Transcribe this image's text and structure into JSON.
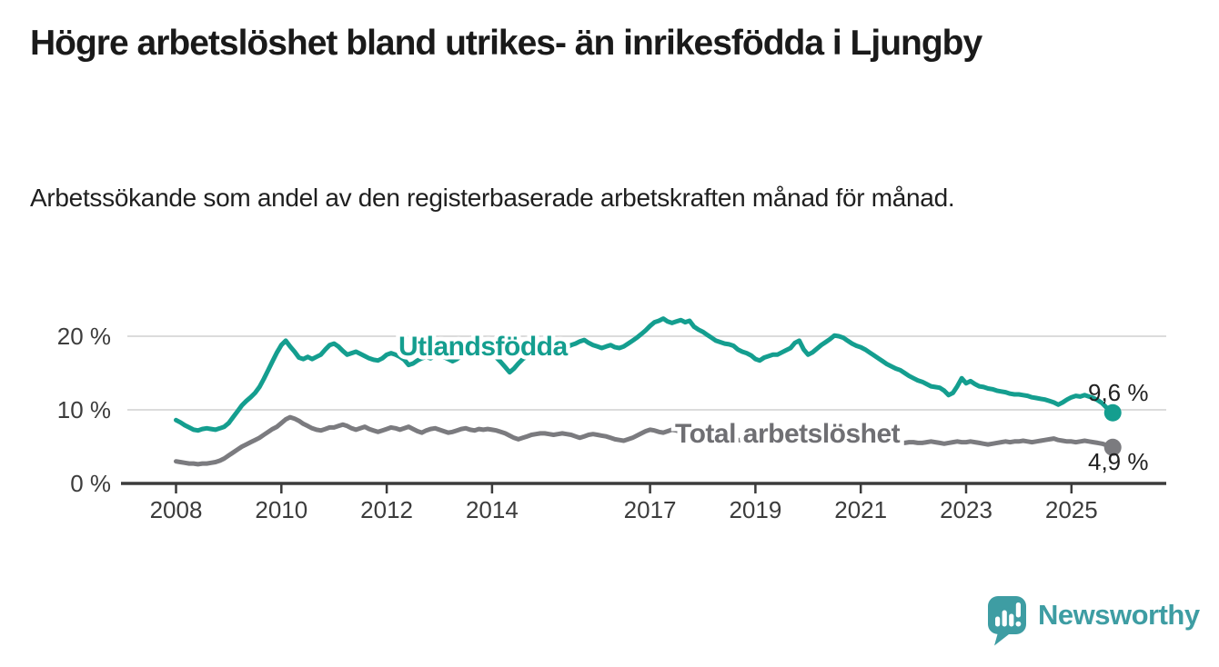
{
  "header": {
    "title": "Högre arbetslöshet bland utrikes- än inrikesfödda i Ljungby",
    "subtitle": "Arbetssökande som andel av den registerbaserade arbetskraften månad för månad."
  },
  "chart_data": {
    "type": "line",
    "unit": "percent of registered labour force",
    "frequency": "monthly",
    "start": "2008-01",
    "end": "2025-10",
    "grid": "horizontal",
    "ylim": [
      0,
      23.5
    ],
    "x_tick_years": [
      "2008",
      "2010",
      "2012",
      "2014",
      "2017",
      "2019",
      "2021",
      "2023",
      "2025"
    ],
    "y_ticks": [
      {
        "value": 0,
        "label": "0 %"
      },
      {
        "value": 10,
        "label": "10 %"
      },
      {
        "value": 20,
        "label": "20 %"
      }
    ],
    "series": [
      {
        "name": "Total arbetslöshet",
        "color": "#7B7B7F",
        "label_color": "#6F6F73",
        "end_value": 4.9,
        "end_label": "4,9 %",
        "values": [
          3.0,
          2.9,
          2.8,
          2.7,
          2.7,
          2.6,
          2.7,
          2.7,
          2.8,
          2.9,
          3.1,
          3.4,
          3.8,
          4.2,
          4.6,
          5.0,
          5.3,
          5.6,
          5.9,
          6.2,
          6.6,
          7.0,
          7.4,
          7.7,
          8.2,
          8.7,
          9.0,
          8.8,
          8.5,
          8.1,
          7.8,
          7.5,
          7.3,
          7.2,
          7.4,
          7.6,
          7.6,
          7.8,
          8.0,
          7.8,
          7.5,
          7.3,
          7.5,
          7.7,
          7.4,
          7.2,
          7.0,
          7.2,
          7.4,
          7.6,
          7.5,
          7.3,
          7.5,
          7.7,
          7.4,
          7.1,
          6.9,
          7.2,
          7.4,
          7.5,
          7.3,
          7.1,
          6.9,
          7.0,
          7.2,
          7.4,
          7.5,
          7.3,
          7.2,
          7.4,
          7.3,
          7.4,
          7.3,
          7.2,
          7.0,
          6.8,
          6.5,
          6.2,
          6.0,
          6.2,
          6.4,
          6.6,
          6.7,
          6.8,
          6.8,
          6.7,
          6.6,
          6.7,
          6.8,
          6.7,
          6.6,
          6.4,
          6.2,
          6.4,
          6.6,
          6.7,
          6.6,
          6.5,
          6.4,
          6.2,
          6.0,
          5.9,
          5.8,
          6.0,
          6.2,
          6.5,
          6.8,
          7.1,
          7.3,
          7.2,
          7.0,
          6.9,
          7.1,
          7.3,
          7.2,
          7.0,
          6.9,
          7.0,
          7.1,
          7.0,
          6.8,
          6.6,
          6.5,
          6.4,
          6.3,
          6.2,
          6.1,
          6.0,
          5.9,
          5.9,
          6.0,
          6.1,
          6.2,
          6.1,
          6.0,
          6.0,
          6.1,
          6.2,
          6.3,
          6.4,
          6.5,
          6.6,
          6.7,
          6.6,
          6.8,
          6.9,
          7.2,
          7.5,
          7.7,
          7.8,
          7.7,
          7.5,
          7.3,
          7.1,
          7.0,
          6.9,
          6.8,
          6.7,
          6.5,
          6.3,
          6.1,
          5.9,
          5.8,
          5.7,
          5.6,
          5.5,
          5.5,
          5.6,
          5.6,
          5.5,
          5.5,
          5.6,
          5.7,
          5.6,
          5.5,
          5.4,
          5.5,
          5.6,
          5.7,
          5.6,
          5.6,
          5.7,
          5.6,
          5.5,
          5.4,
          5.3,
          5.4,
          5.5,
          5.6,
          5.7,
          5.6,
          5.7,
          5.7,
          5.8,
          5.7,
          5.6,
          5.7,
          5.8,
          5.9,
          6.0,
          6.1,
          5.9,
          5.8,
          5.7,
          5.7,
          5.6,
          5.7,
          5.8,
          5.7,
          5.6,
          5.5,
          5.4,
          5.2,
          4.9
        ]
      },
      {
        "name": "Utlandsfödda",
        "color": "#149E8F",
        "label_color": "#149E8F",
        "end_value": 9.6,
        "end_label": "9,6 %",
        "values": [
          8.6,
          8.3,
          7.9,
          7.6,
          7.3,
          7.2,
          7.4,
          7.5,
          7.4,
          7.3,
          7.5,
          7.7,
          8.2,
          9.0,
          9.8,
          10.6,
          11.2,
          11.7,
          12.3,
          13.1,
          14.2,
          15.4,
          16.6,
          17.8,
          18.8,
          19.4,
          18.6,
          17.9,
          17.1,
          16.9,
          17.2,
          16.9,
          17.2,
          17.5,
          18.2,
          18.8,
          19.0,
          18.6,
          18.0,
          17.5,
          17.7,
          17.9,
          17.6,
          17.3,
          17.0,
          16.8,
          16.7,
          17.0,
          17.5,
          17.7,
          17.5,
          17.2,
          16.8,
          16.1,
          16.3,
          16.7,
          17.0,
          17.2,
          17.0,
          17.3,
          17.4,
          17.2,
          16.9,
          16.6,
          16.9,
          17.3,
          17.6,
          17.4,
          17.2,
          17.5,
          17.7,
          17.9,
          17.6,
          17.1,
          16.5,
          15.8,
          15.1,
          15.6,
          16.3,
          16.9,
          17.3,
          17.6,
          17.9,
          18.2,
          18.4,
          18.6,
          18.8,
          18.9,
          18.7,
          18.5,
          18.8,
          19.0,
          19.3,
          19.5,
          19.1,
          18.8,
          18.6,
          18.4,
          18.6,
          18.8,
          18.5,
          18.4,
          18.6,
          19.0,
          19.4,
          19.8,
          20.3,
          20.8,
          21.4,
          21.9,
          22.1,
          22.4,
          22.0,
          21.8,
          22.0,
          22.2,
          21.9,
          22.1,
          21.3,
          20.9,
          20.6,
          20.2,
          19.8,
          19.4,
          19.2,
          19.0,
          18.9,
          18.7,
          18.2,
          17.9,
          17.7,
          17.4,
          16.9,
          16.7,
          17.1,
          17.3,
          17.5,
          17.5,
          17.8,
          18.1,
          18.4,
          19.1,
          19.4,
          18.2,
          17.5,
          17.8,
          18.3,
          18.8,
          19.2,
          19.6,
          20.1,
          20.0,
          19.8,
          19.4,
          19.0,
          18.7,
          18.5,
          18.2,
          17.8,
          17.4,
          17.0,
          16.6,
          16.2,
          15.9,
          15.6,
          15.4,
          15.0,
          14.6,
          14.3,
          14.0,
          13.8,
          13.5,
          13.2,
          13.1,
          13.0,
          12.6,
          12.0,
          12.3,
          13.2,
          14.3,
          13.6,
          13.9,
          13.5,
          13.2,
          13.1,
          12.9,
          12.8,
          12.6,
          12.5,
          12.4,
          12.2,
          12.1,
          12.1,
          12.0,
          11.9,
          11.7,
          11.6,
          11.5,
          11.4,
          11.2,
          11.0,
          10.7,
          11.0,
          11.4,
          11.7,
          11.9,
          11.8,
          12.0,
          11.8,
          11.6,
          11.3,
          10.9,
          10.3,
          9.6
        ]
      }
    ]
  },
  "branding": {
    "logo_text": "Newsworthy",
    "logo_color": "#3E9DA3"
  },
  "colors": {
    "axis": "#3B3B3B",
    "grid": "#DCDCDC",
    "tick_text": "#3C3C3C",
    "title": "#1A1A1A",
    "value_label": "#202020"
  }
}
